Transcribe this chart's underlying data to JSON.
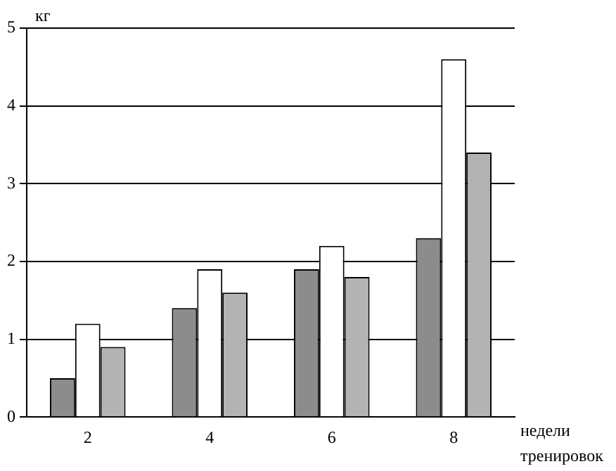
{
  "chart_data": {
    "type": "bar",
    "xlabel": "недели тренировок",
    "ylabel": "кг",
    "categories": [
      "2",
      "4",
      "6",
      "8"
    ],
    "series": [
      {
        "color": "#8c8c8c",
        "values": [
          0.5,
          1.4,
          1.9,
          2.3
        ]
      },
      {
        "color": "#ffffff",
        "values": [
          1.2,
          1.9,
          2.2,
          4.6
        ]
      },
      {
        "color": "#b3b3b3",
        "values": [
          0.9,
          1.6,
          1.8,
          3.4
        ]
      }
    ],
    "ylim": [
      0,
      5
    ],
    "yticks": [
      0,
      1,
      2,
      3,
      4,
      5
    ],
    "grid": "y",
    "legend": false
  }
}
